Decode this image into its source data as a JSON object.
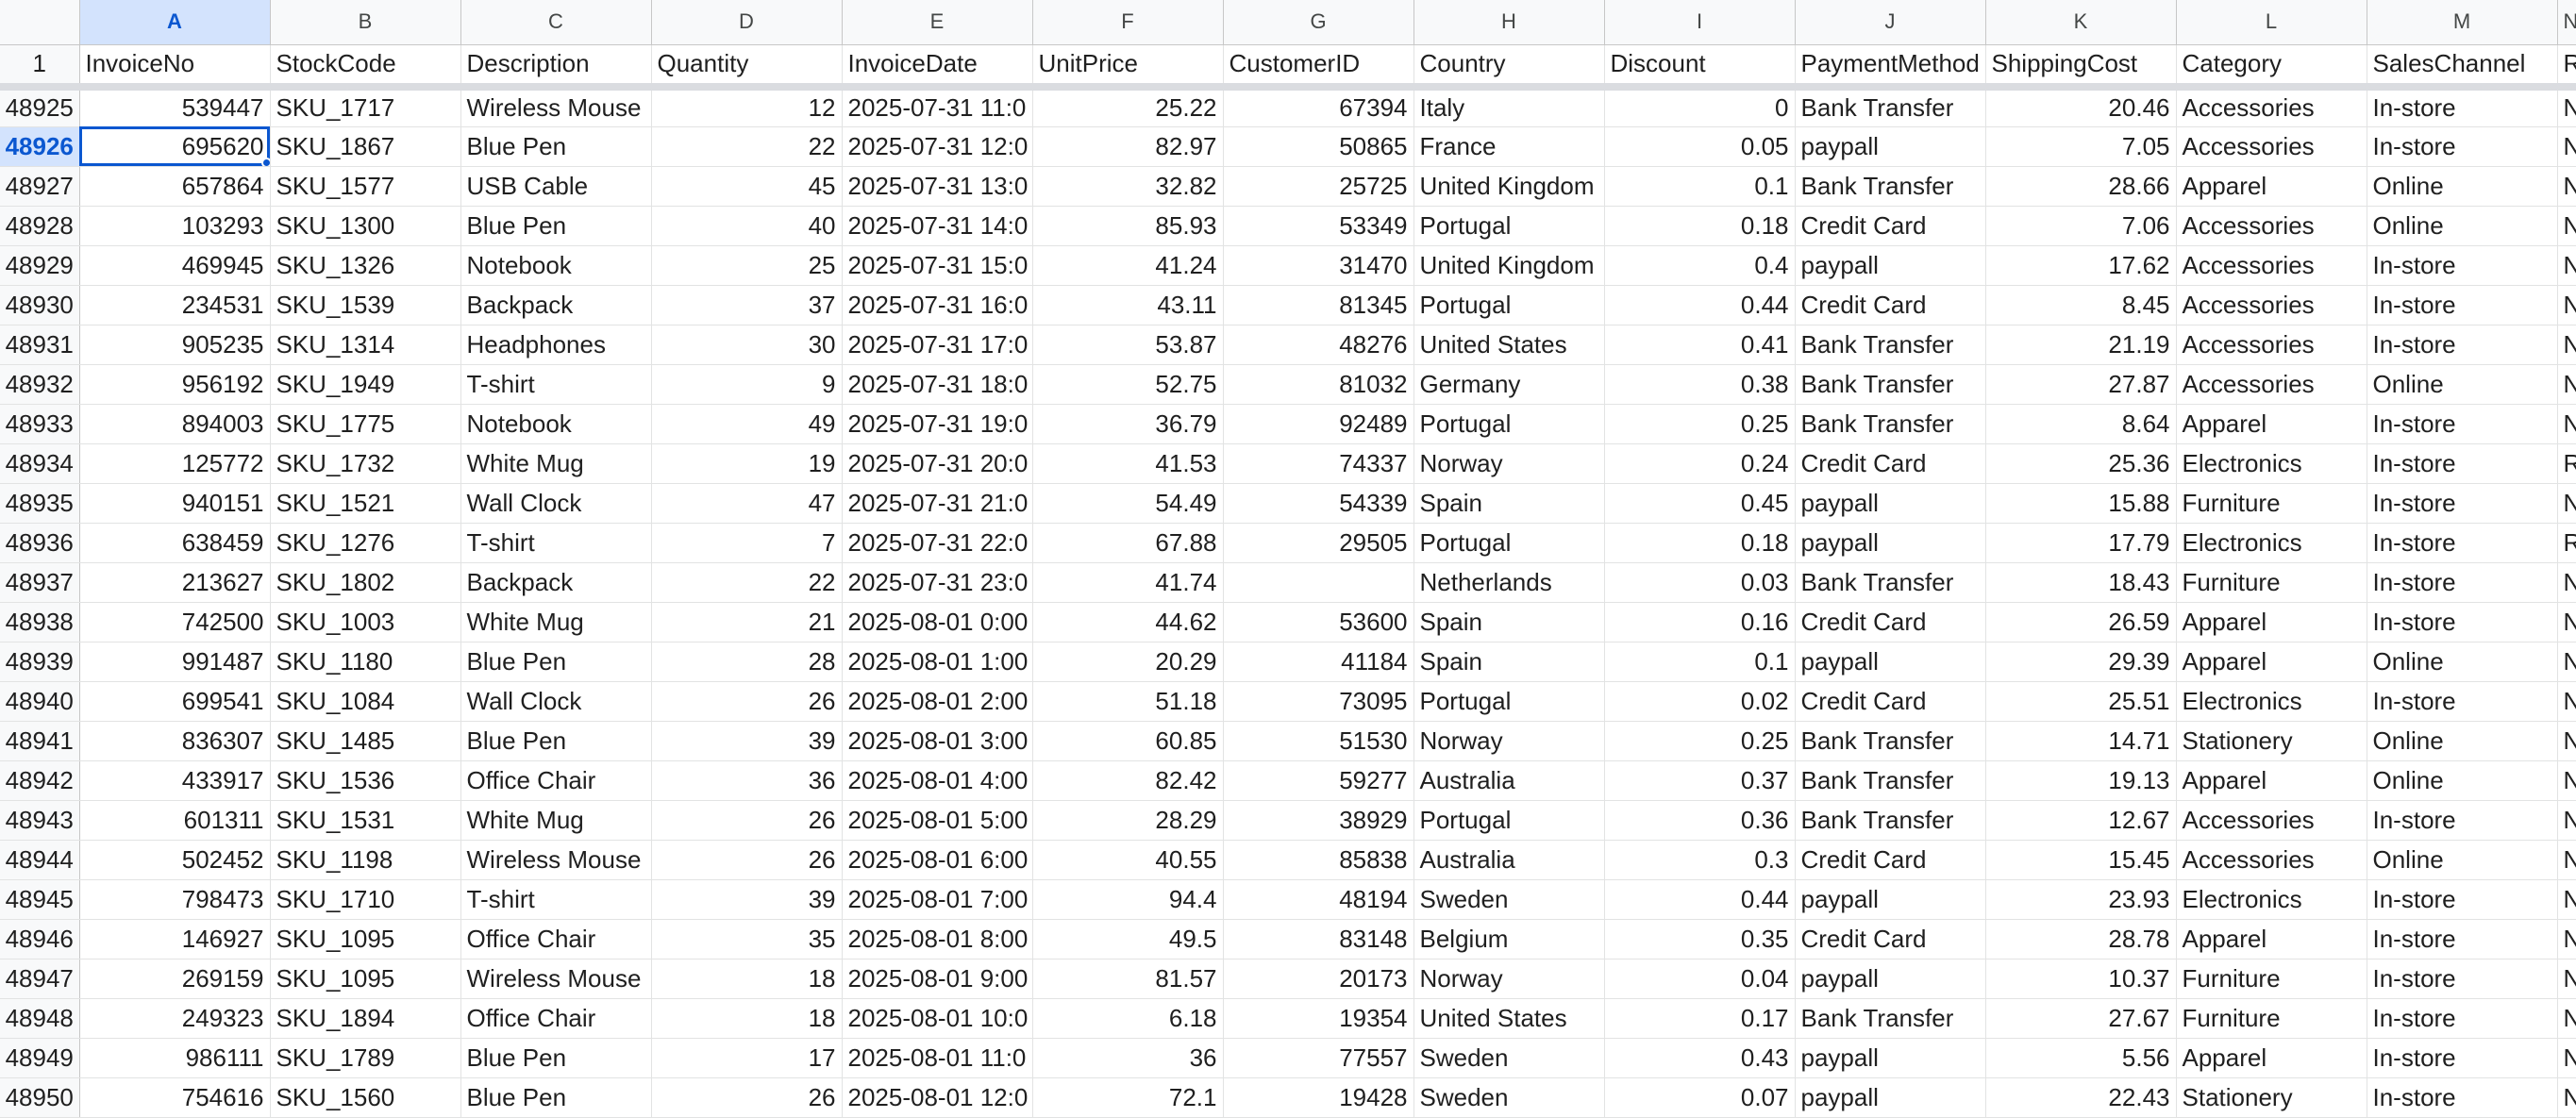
{
  "column_letters": [
    "A",
    "B",
    "C",
    "D",
    "E",
    "F",
    "G",
    "H",
    "I",
    "J",
    "K",
    "L",
    "M",
    "N"
  ],
  "header_row": {
    "row_number": "1",
    "cells": [
      "InvoiceNo",
      "StockCode",
      "Description",
      "Quantity",
      "InvoiceDate",
      "UnitPrice",
      "CustomerID",
      "Country",
      "Discount",
      "PaymentMethod",
      "ShippingCost",
      "Category",
      "SalesChannel",
      "R"
    ]
  },
  "selected_cell": {
    "row": "48926",
    "column": "A"
  },
  "rows": [
    {
      "n": "48925",
      "cells": [
        "539447",
        "SKU_1717",
        "Wireless Mouse",
        "12",
        "2025-07-31 11:0",
        "25.22",
        "67394",
        "Italy",
        "0",
        "Bank Transfer",
        "20.46",
        "Accessories",
        "In-store",
        "N"
      ]
    },
    {
      "n": "48926",
      "cells": [
        "695620",
        "SKU_1867",
        "Blue Pen",
        "22",
        "2025-07-31 12:0",
        "82.97",
        "50865",
        "France",
        "0.05",
        "paypall",
        "7.05",
        "Accessories",
        "In-store",
        "N"
      ]
    },
    {
      "n": "48927",
      "cells": [
        "657864",
        "SKU_1577",
        "USB Cable",
        "45",
        "2025-07-31 13:0",
        "32.82",
        "25725",
        "United Kingdom",
        "0.1",
        "Bank Transfer",
        "28.66",
        "Apparel",
        "Online",
        "N"
      ]
    },
    {
      "n": "48928",
      "cells": [
        "103293",
        "SKU_1300",
        "Blue Pen",
        "40",
        "2025-07-31 14:0",
        "85.93",
        "53349",
        "Portugal",
        "0.18",
        "Credit Card",
        "7.06",
        "Accessories",
        "Online",
        "N"
      ]
    },
    {
      "n": "48929",
      "cells": [
        "469945",
        "SKU_1326",
        "Notebook",
        "25",
        "2025-07-31 15:0",
        "41.24",
        "31470",
        "United Kingdom",
        "0.4",
        "paypall",
        "17.62",
        "Accessories",
        "In-store",
        "N"
      ]
    },
    {
      "n": "48930",
      "cells": [
        "234531",
        "SKU_1539",
        "Backpack",
        "37",
        "2025-07-31 16:0",
        "43.11",
        "81345",
        "Portugal",
        "0.44",
        "Credit Card",
        "8.45",
        "Accessories",
        "In-store",
        "N"
      ]
    },
    {
      "n": "48931",
      "cells": [
        "905235",
        "SKU_1314",
        "Headphones",
        "30",
        "2025-07-31 17:0",
        "53.87",
        "48276",
        "United States",
        "0.41",
        "Bank Transfer",
        "21.19",
        "Accessories",
        "In-store",
        "N"
      ]
    },
    {
      "n": "48932",
      "cells": [
        "956192",
        "SKU_1949",
        "T-shirt",
        "9",
        "2025-07-31 18:0",
        "52.75",
        "81032",
        "Germany",
        "0.38",
        "Bank Transfer",
        "27.87",
        "Accessories",
        "Online",
        "N"
      ]
    },
    {
      "n": "48933",
      "cells": [
        "894003",
        "SKU_1775",
        "Notebook",
        "49",
        "2025-07-31 19:0",
        "36.79",
        "92489",
        "Portugal",
        "0.25",
        "Bank Transfer",
        "8.64",
        "Apparel",
        "In-store",
        "N"
      ]
    },
    {
      "n": "48934",
      "cells": [
        "125772",
        "SKU_1732",
        "White Mug",
        "19",
        "2025-07-31 20:0",
        "41.53",
        "74337",
        "Norway",
        "0.24",
        "Credit Card",
        "25.36",
        "Electronics",
        "In-store",
        "R"
      ]
    },
    {
      "n": "48935",
      "cells": [
        "940151",
        "SKU_1521",
        "Wall Clock",
        "47",
        "2025-07-31 21:0",
        "54.49",
        "54339",
        "Spain",
        "0.45",
        "paypall",
        "15.88",
        "Furniture",
        "In-store",
        "N"
      ]
    },
    {
      "n": "48936",
      "cells": [
        "638459",
        "SKU_1276",
        "T-shirt",
        "7",
        "2025-07-31 22:0",
        "67.88",
        "29505",
        "Portugal",
        "0.18",
        "paypall",
        "17.79",
        "Electronics",
        "In-store",
        "R"
      ]
    },
    {
      "n": "48937",
      "cells": [
        "213627",
        "SKU_1802",
        "Backpack",
        "22",
        "2025-07-31 23:0",
        "41.74",
        "",
        "Netherlands",
        "0.03",
        "Bank Transfer",
        "18.43",
        "Furniture",
        "In-store",
        "N"
      ]
    },
    {
      "n": "48938",
      "cells": [
        "742500",
        "SKU_1003",
        "White Mug",
        "21",
        "2025-08-01 0:00",
        "44.62",
        "53600",
        "Spain",
        "0.16",
        "Credit Card",
        "26.59",
        "Apparel",
        "In-store",
        "N"
      ]
    },
    {
      "n": "48939",
      "cells": [
        "991487",
        "SKU_1180",
        "Blue Pen",
        "28",
        "2025-08-01 1:00",
        "20.29",
        "41184",
        "Spain",
        "0.1",
        "paypall",
        "29.39",
        "Apparel",
        "Online",
        "N"
      ]
    },
    {
      "n": "48940",
      "cells": [
        "699541",
        "SKU_1084",
        "Wall Clock",
        "26",
        "2025-08-01 2:00",
        "51.18",
        "73095",
        "Portugal",
        "0.02",
        "Credit Card",
        "25.51",
        "Electronics",
        "In-store",
        "N"
      ]
    },
    {
      "n": "48941",
      "cells": [
        "836307",
        "SKU_1485",
        "Blue Pen",
        "39",
        "2025-08-01 3:00",
        "60.85",
        "51530",
        "Norway",
        "0.25",
        "Bank Transfer",
        "14.71",
        "Stationery",
        "Online",
        "N"
      ]
    },
    {
      "n": "48942",
      "cells": [
        "433917",
        "SKU_1536",
        "Office Chair",
        "36",
        "2025-08-01 4:00",
        "82.42",
        "59277",
        "Australia",
        "0.37",
        "Bank Transfer",
        "19.13",
        "Apparel",
        "Online",
        "N"
      ]
    },
    {
      "n": "48943",
      "cells": [
        "601311",
        "SKU_1531",
        "White Mug",
        "26",
        "2025-08-01 5:00",
        "28.29",
        "38929",
        "Portugal",
        "0.36",
        "Bank Transfer",
        "12.67",
        "Accessories",
        "In-store",
        "N"
      ]
    },
    {
      "n": "48944",
      "cells": [
        "502452",
        "SKU_1198",
        "Wireless Mouse",
        "26",
        "2025-08-01 6:00",
        "40.55",
        "85838",
        "Australia",
        "0.3",
        "Credit Card",
        "15.45",
        "Accessories",
        "Online",
        "N"
      ]
    },
    {
      "n": "48945",
      "cells": [
        "798473",
        "SKU_1710",
        "T-shirt",
        "39",
        "2025-08-01 7:00",
        "94.4",
        "48194",
        "Sweden",
        "0.44",
        "paypall",
        "23.93",
        "Electronics",
        "In-store",
        "N"
      ]
    },
    {
      "n": "48946",
      "cells": [
        "146927",
        "SKU_1095",
        "Office Chair",
        "35",
        "2025-08-01 8:00",
        "49.5",
        "83148",
        "Belgium",
        "0.35",
        "Credit Card",
        "28.78",
        "Apparel",
        "In-store",
        "N"
      ]
    },
    {
      "n": "48947",
      "cells": [
        "269159",
        "SKU_1095",
        "Wireless Mouse",
        "18",
        "2025-08-01 9:00",
        "81.57",
        "20173",
        "Norway",
        "0.04",
        "paypall",
        "10.37",
        "Furniture",
        "In-store",
        "N"
      ]
    },
    {
      "n": "48948",
      "cells": [
        "249323",
        "SKU_1894",
        "Office Chair",
        "18",
        "2025-08-01 10:0",
        "6.18",
        "19354",
        "United States",
        "0.17",
        "Bank Transfer",
        "27.67",
        "Furniture",
        "In-store",
        "N"
      ]
    },
    {
      "n": "48949",
      "cells": [
        "986111",
        "SKU_1789",
        "Blue Pen",
        "17",
        "2025-08-01 11:0",
        "36",
        "77557",
        "Sweden",
        "0.43",
        "paypall",
        "5.56",
        "Apparel",
        "In-store",
        "N"
      ]
    },
    {
      "n": "48950",
      "cells": [
        "754616",
        "SKU_1560",
        "Blue Pen",
        "26",
        "2025-08-01 12:0",
        "72.1",
        "19428",
        "Sweden",
        "0.07",
        "paypall",
        "22.43",
        "Stationery",
        "In-store",
        "N"
      ]
    }
  ]
}
